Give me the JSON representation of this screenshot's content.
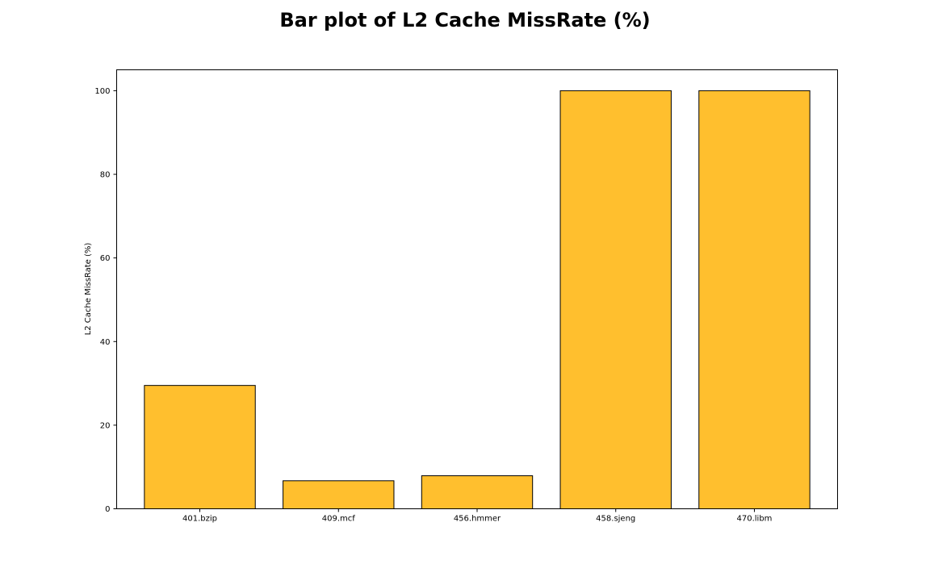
{
  "chart_data": {
    "type": "bar",
    "title": "Bar plot of L2 Cache MissRate (%)",
    "xlabel": "",
    "ylabel": "L2 Cache MissRate (%)",
    "categories": [
      "401.bzip",
      "409.mcf",
      "456.hmmer",
      "458.sjeng",
      "470.libm"
    ],
    "values": [
      29.5,
      6.7,
      7.9,
      100,
      100
    ],
    "ylim": [
      0,
      105
    ],
    "yticks": [
      0,
      20,
      40,
      60,
      80,
      100
    ],
    "bar_color": "#ffbf2e",
    "bar_edge_color": "#000000",
    "grid": false,
    "legend": "none"
  }
}
